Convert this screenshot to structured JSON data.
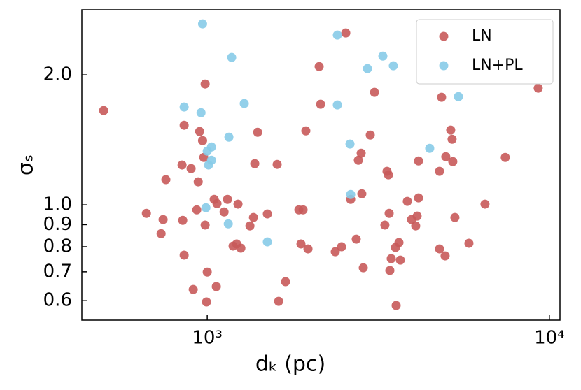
{
  "chart_data": {
    "type": "scatter",
    "xlabel": "dₖ (pc)",
    "ylabel": "σₛ",
    "xscale": "log",
    "yscale": "log",
    "xlim": [
      430,
      10740
    ],
    "ylim": [
      0.541,
      2.83
    ],
    "xticks": [
      {
        "value": 1000,
        "label": "10³"
      },
      {
        "value": 10000,
        "label": "10⁴"
      }
    ],
    "yticks": [
      0.6,
      0.7,
      0.8,
      0.9,
      {
        "value": 1,
        "label": "1.0"
      },
      {
        "value": 2,
        "label": "2.0"
      }
    ],
    "legend": "upper right",
    "series": [
      {
        "name": "LN",
        "color": "#c85a5a",
        "x": [
          498,
          664,
          743,
          733,
          757,
          848,
          856,
          844,
          856,
          897,
          910,
          932,
          941,
          950,
          969,
          977,
          986,
          986,
          995,
          1000,
          1048,
          1068,
          1063,
          1120,
          1146,
          1190,
          1219,
          1230,
          1254,
          1333,
          1365,
          1377,
          1404,
          1601,
          1499,
          1617,
          1694,
          1853,
          1906,
          1879,
          1970,
          1942,
          2124,
          2145,
          2367,
          2470,
          2541,
          2626,
          2726,
          2765,
          2818,
          2831,
          2858,
          2996,
          3082,
          3306,
          3354,
          3386,
          3402,
          3418,
          3450,
          3550,
          3566,
          3634,
          3668,
          3845,
          3955,
          4068,
          4107,
          4146,
          4146,
          4775,
          4775,
          4842,
          4958,
          4981,
          5148,
          5196,
          5221,
          5296,
          5820,
          6485,
          7432,
          9276
        ],
        "values": [
          1.654,
          0.956,
          0.925,
          0.858,
          1.144,
          0.921,
          1.529,
          1.237,
          0.765,
          1.214,
          0.637,
          0.974,
          1.131,
          1.479,
          1.409,
          1.288,
          1.905,
          0.898,
          0.596,
          0.699,
          1.03,
          1.007,
          0.647,
          0.963,
          1.03,
          0.803,
          0.812,
          1.004,
          0.794,
          0.894,
          0.935,
          1.246,
          1.473,
          1.241,
          0.953,
          0.598,
          0.664,
          0.974,
          0.974,
          0.812,
          0.791,
          1.484,
          2.091,
          1.71,
          0.779,
          0.8,
          2.501,
          1.03,
          0.833,
          1.269,
          1.317,
          1.061,
          0.715,
          1.451,
          1.822,
          0.898,
          1.196,
          1.174,
          0.956,
          0.705,
          0.751,
          0.797,
          0.585,
          0.818,
          0.745,
          1.019,
          0.925,
          0.894,
          0.942,
          1.264,
          1.038,
          0.791,
          1.196,
          1.775,
          0.762,
          1.293,
          1.49,
          1.419,
          1.26,
          0.935,
          0.815,
          1.004,
          1.288,
          1.863
        ]
      },
      {
        "name": "LN+PL",
        "color": "#87cbe8",
        "x": [
          969,
          1179,
          856,
          959,
          1283,
          1157,
          1029,
          1000,
          1029,
          1009,
          991,
          1152,
          1499,
          2401,
          2401,
          3261,
          2940,
          3499,
          2614,
          4470,
          5423,
          2626
        ],
        "values": [
          2.625,
          2.195,
          1.685,
          1.635,
          1.717,
          1.435,
          1.362,
          1.332,
          1.269,
          1.237,
          0.985,
          0.904,
          0.821,
          2.473,
          1.704,
          2.211,
          2.068,
          2.099,
          1.383,
          1.352,
          1.781,
          1.057
        ]
      }
    ]
  }
}
